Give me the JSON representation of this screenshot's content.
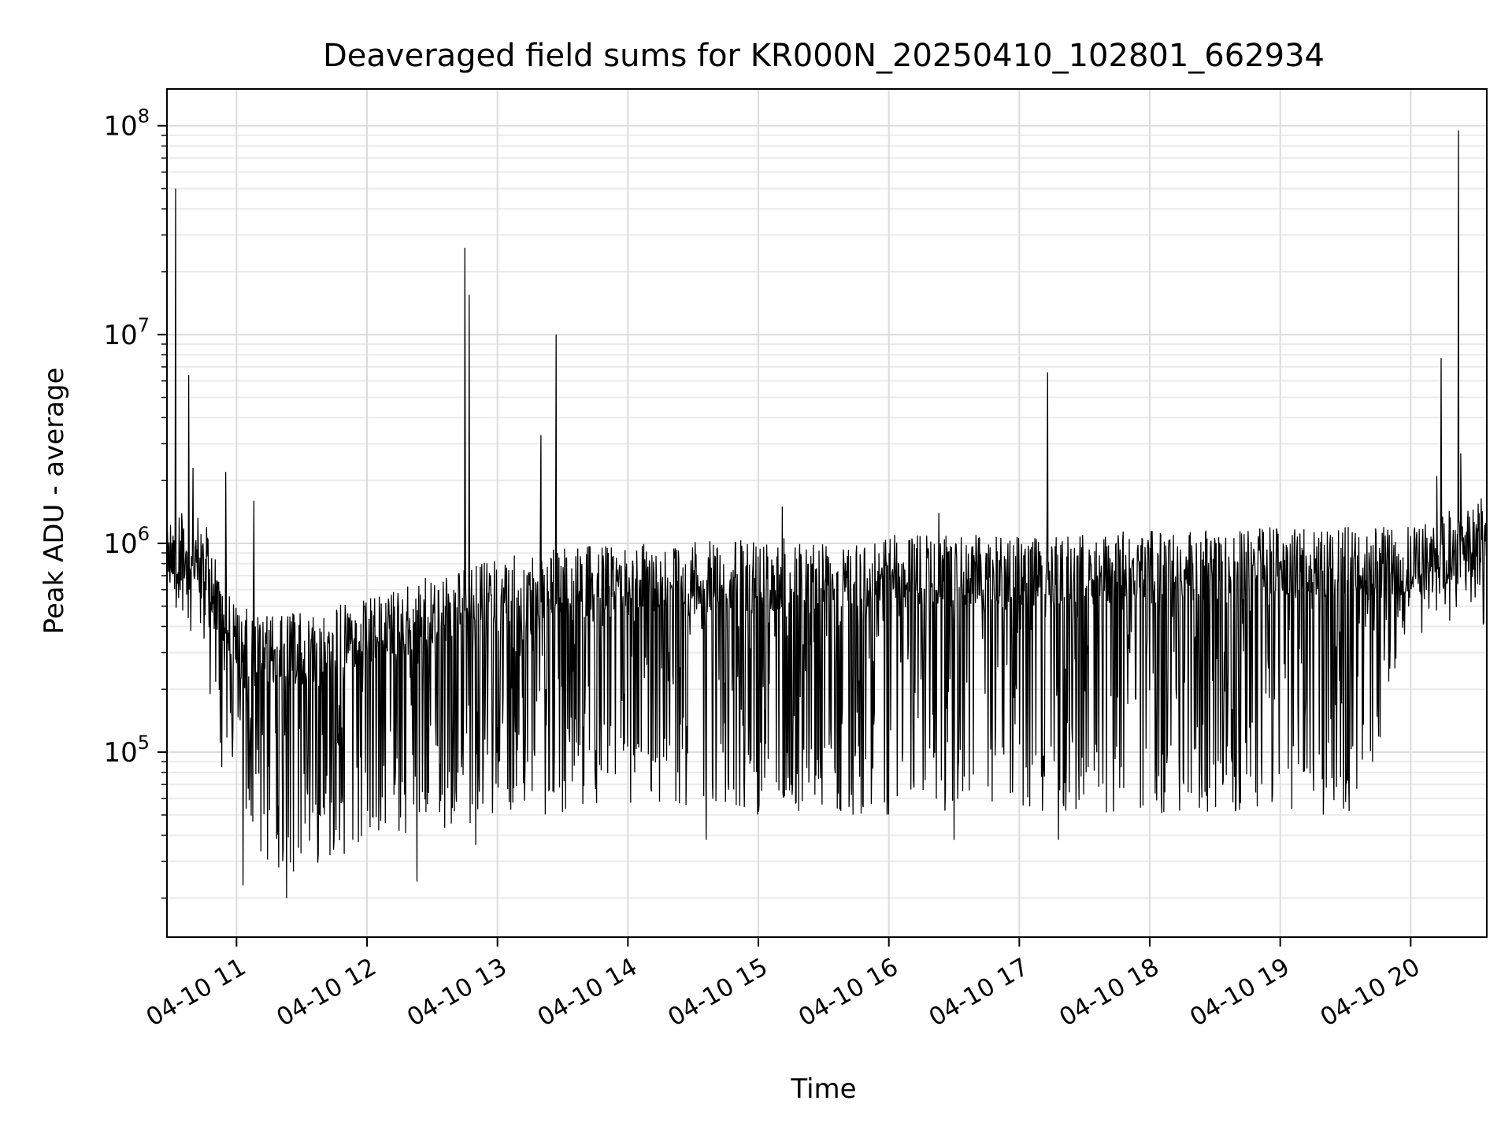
{
  "chart_data": {
    "type": "line",
    "title": "Deaveraged field sums for KR000N_20250410_102801_662934",
    "xlabel": "Time",
    "ylabel": "Peak ADU - average",
    "y_scale": "log",
    "ylim": [
      13000,
      150000000
    ],
    "xlim": [
      "2025-04-10 10:28",
      "2025-04-10 20:35"
    ],
    "grid": true,
    "line_color": "#000000",
    "x_ticks": [
      {
        "t": "2025-04-10 11:00",
        "label": "04-10 11"
      },
      {
        "t": "2025-04-10 12:00",
        "label": "04-10 12"
      },
      {
        "t": "2025-04-10 13:00",
        "label": "04-10 13"
      },
      {
        "t": "2025-04-10 14:00",
        "label": "04-10 14"
      },
      {
        "t": "2025-04-10 15:00",
        "label": "04-10 15"
      },
      {
        "t": "2025-04-10 16:00",
        "label": "04-10 16"
      },
      {
        "t": "2025-04-10 17:00",
        "label": "04-10 17"
      },
      {
        "t": "2025-04-10 18:00",
        "label": "04-10 18"
      },
      {
        "t": "2025-04-10 19:00",
        "label": "04-10 19"
      },
      {
        "t": "2025-04-10 20:00",
        "label": "04-10 20"
      }
    ],
    "y_ticks": [
      {
        "value": 100000,
        "base": "10",
        "exp": "5"
      },
      {
        "value": 1000000,
        "base": "10",
        "exp": "6"
      },
      {
        "value": 10000000,
        "base": "10",
        "exp": "7"
      },
      {
        "value": 100000000,
        "base": "10",
        "exp": "8"
      }
    ],
    "series": [
      {
        "style": "dense-oscillating",
        "envelope": [
          {
            "t": "2025-04-10 10:28",
            "high": 1500000,
            "low": 400000
          },
          {
            "t": "2025-04-10 10:45",
            "high": 1300000,
            "low": 200000
          },
          {
            "t": "2025-04-10 11:00",
            "high": 500000,
            "low": 40000
          },
          {
            "t": "2025-04-10 11:20",
            "high": 450000,
            "low": 25000
          },
          {
            "t": "2025-04-10 11:40",
            "high": 500000,
            "low": 30000
          },
          {
            "t": "2025-04-10 12:00",
            "high": 550000,
            "low": 35000
          },
          {
            "t": "2025-04-10 12:30",
            "high": 700000,
            "low": 40000
          },
          {
            "t": "2025-04-10 13:00",
            "high": 850000,
            "low": 50000
          },
          {
            "t": "2025-04-10 13:30",
            "high": 950000,
            "low": 50000
          },
          {
            "t": "2025-04-10 14:00",
            "high": 1000000,
            "low": 55000
          },
          {
            "t": "2025-04-10 15:00",
            "high": 1050000,
            "low": 50000
          },
          {
            "t": "2025-04-10 16:00",
            "high": 1100000,
            "low": 50000
          },
          {
            "t": "2025-04-10 17:00",
            "high": 1100000,
            "low": 50000
          },
          {
            "t": "2025-04-10 18:00",
            "high": 1150000,
            "low": 50000
          },
          {
            "t": "2025-04-10 19:00",
            "high": 1200000,
            "low": 50000
          },
          {
            "t": "2025-04-10 19:40",
            "high": 1200000,
            "low": 50000
          },
          {
            "t": "2025-04-10 19:55",
            "high": 1200000,
            "low": 300000
          },
          {
            "t": "2025-04-10 20:10",
            "high": 1300000,
            "low": 400000
          },
          {
            "t": "2025-04-10 20:35",
            "high": 1800000,
            "low": 400000
          }
        ],
        "spikes": [
          {
            "t": "2025-04-10 10:32",
            "value": 50000000
          },
          {
            "t": "2025-04-10 10:38",
            "value": 6400000
          },
          {
            "t": "2025-04-10 10:40",
            "value": 2300000
          },
          {
            "t": "2025-04-10 10:55",
            "value": 2200000
          },
          {
            "t": "2025-04-10 11:08",
            "value": 1600000
          },
          {
            "t": "2025-04-10 12:45",
            "value": 26000000
          },
          {
            "t": "2025-04-10 12:47",
            "value": 15500000
          },
          {
            "t": "2025-04-10 13:20",
            "value": 3300000
          },
          {
            "t": "2025-04-10 13:27",
            "value": 10000000
          },
          {
            "t": "2025-04-10 15:11",
            "value": 1500000
          },
          {
            "t": "2025-04-10 16:23",
            "value": 1400000
          },
          {
            "t": "2025-04-10 17:13",
            "value": 6600000
          },
          {
            "t": "2025-04-10 20:12",
            "value": 2100000
          },
          {
            "t": "2025-04-10 20:14",
            "value": 7700000
          },
          {
            "t": "2025-04-10 20:22",
            "value": 95000000
          },
          {
            "t": "2025-04-10 20:23",
            "value": 2700000
          }
        ],
        "dips": [
          {
            "t": "2025-04-10 11:23",
            "value": 20000
          },
          {
            "t": "2025-04-10 11:03",
            "value": 23000
          },
          {
            "t": "2025-04-10 12:23",
            "value": 24000
          },
          {
            "t": "2025-04-10 12:50",
            "value": 36000
          },
          {
            "t": "2025-04-10 14:36",
            "value": 38000
          },
          {
            "t": "2025-04-10 16:30",
            "value": 38000
          },
          {
            "t": "2025-04-10 17:18",
            "value": 38000
          }
        ]
      }
    ]
  }
}
